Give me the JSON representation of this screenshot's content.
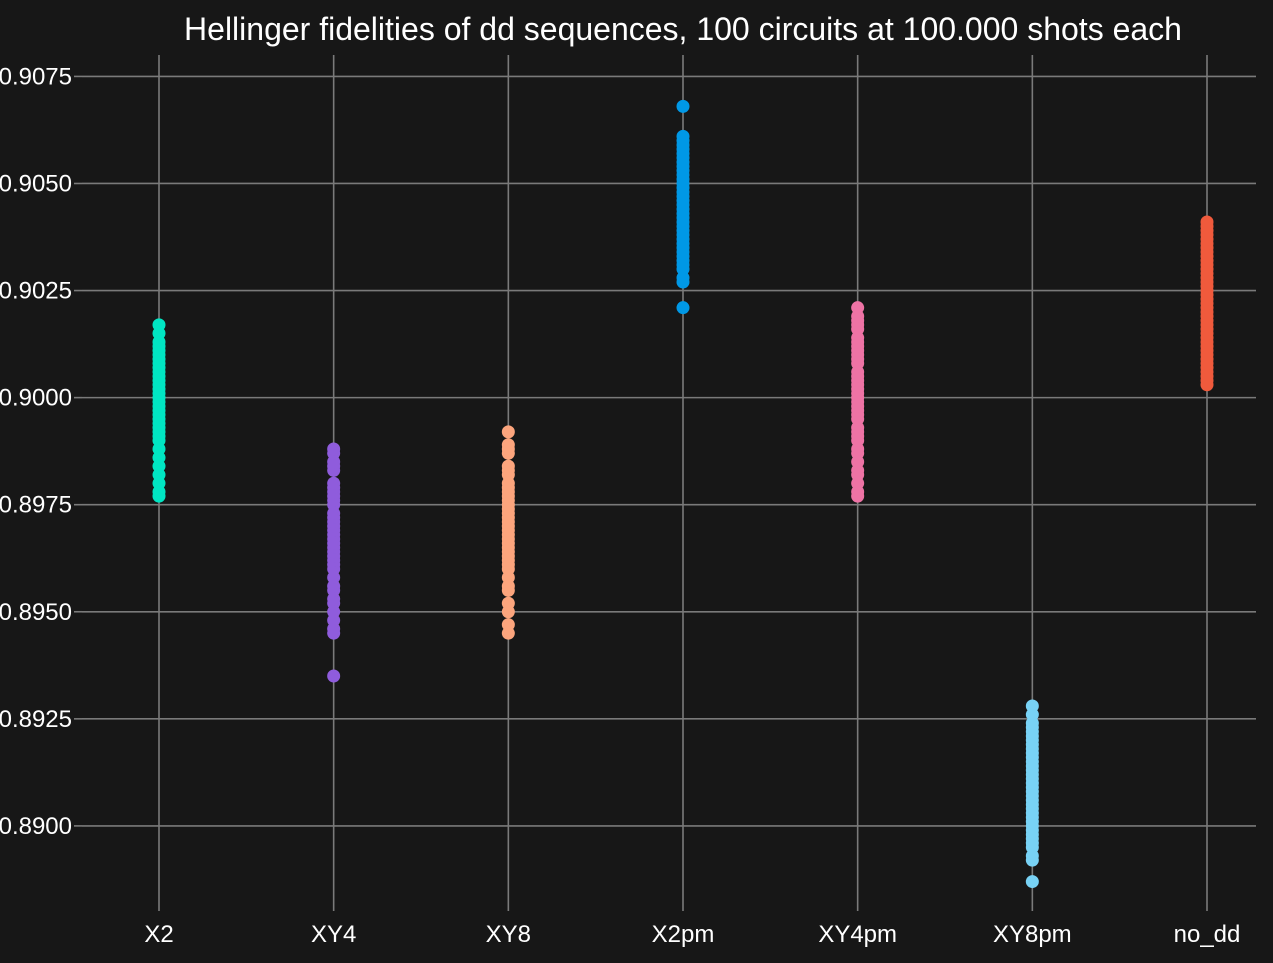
{
  "chart_data": {
    "type": "scatter",
    "title": "Hellinger fidelities of dd sequences, 100 circuits at 100.000 shots each",
    "xlabel": "",
    "ylabel": "",
    "categories": [
      "X2",
      "XY4",
      "XY8",
      "X2pm",
      "XY4pm",
      "XY8pm",
      "no_dd"
    ],
    "ylim": [
      0.8882,
      0.908
    ],
    "yticks": [
      0.89,
      0.8925,
      0.895,
      0.8975,
      0.9,
      0.9025,
      0.905,
      0.9075
    ],
    "ytick_labels": [
      "0.8900",
      "0.8925",
      "0.8950",
      "0.8975",
      "0.9000",
      "0.9025",
      "0.9050",
      "0.9075"
    ],
    "grid": true,
    "legend": "none",
    "series": [
      {
        "category": "X2",
        "color": "#00e6c3",
        "values": [
          0.8977,
          0.8978,
          0.898,
          0.8982,
          0.8984,
          0.8986,
          0.8988,
          0.899,
          0.8991,
          0.8992,
          0.8993,
          0.8994,
          0.8995,
          0.8996,
          0.8997,
          0.8998,
          0.8999,
          0.9,
          0.9001,
          0.9002,
          0.9003,
          0.9004,
          0.9005,
          0.9006,
          0.9007,
          0.9008,
          0.9009,
          0.901,
          0.9011,
          0.9012,
          0.9013,
          0.9015,
          0.9017
        ]
      },
      {
        "category": "XY4",
        "color": "#8f5cdc",
        "values": [
          0.8935,
          0.8945,
          0.8946,
          0.8948,
          0.895,
          0.8952,
          0.8953,
          0.8955,
          0.8956,
          0.8958,
          0.896,
          0.8961,
          0.8962,
          0.8963,
          0.8964,
          0.8965,
          0.8966,
          0.8967,
          0.8968,
          0.8969,
          0.897,
          0.8971,
          0.8972,
          0.8973,
          0.8975,
          0.8976,
          0.8977,
          0.8978,
          0.8979,
          0.898,
          0.8983,
          0.8984,
          0.8985,
          0.8987,
          0.8988
        ]
      },
      {
        "category": "XY8",
        "color": "#fca57d",
        "values": [
          0.8945,
          0.8947,
          0.895,
          0.8952,
          0.8955,
          0.8956,
          0.8958,
          0.896,
          0.8961,
          0.8962,
          0.8963,
          0.8964,
          0.8965,
          0.8966,
          0.8967,
          0.8968,
          0.8969,
          0.897,
          0.8971,
          0.8972,
          0.8973,
          0.8974,
          0.8975,
          0.8976,
          0.8977,
          0.8978,
          0.8979,
          0.898,
          0.8982,
          0.8983,
          0.8984,
          0.8987,
          0.8988,
          0.8989,
          0.8992
        ]
      },
      {
        "category": "X2pm",
        "color": "#0098e6",
        "values": [
          0.9021,
          0.9027,
          0.9028,
          0.903,
          0.9031,
          0.9032,
          0.9033,
          0.9034,
          0.9035,
          0.9036,
          0.9037,
          0.9038,
          0.9039,
          0.904,
          0.9041,
          0.9042,
          0.9043,
          0.9044,
          0.9045,
          0.9046,
          0.9047,
          0.9048,
          0.9049,
          0.905,
          0.9051,
          0.9052,
          0.9053,
          0.9054,
          0.9055,
          0.9056,
          0.9057,
          0.9058,
          0.9059,
          0.906,
          0.9061,
          0.9068
        ]
      },
      {
        "category": "XY4pm",
        "color": "#ee73a5",
        "values": [
          0.8977,
          0.8978,
          0.898,
          0.8982,
          0.8983,
          0.8985,
          0.8987,
          0.8988,
          0.899,
          0.8991,
          0.8992,
          0.8993,
          0.8995,
          0.8996,
          0.8997,
          0.8998,
          0.8999,
          0.9,
          0.9001,
          0.9002,
          0.9003,
          0.9004,
          0.9005,
          0.9006,
          0.9008,
          0.9009,
          0.901,
          0.9011,
          0.9012,
          0.9013,
          0.9014,
          0.9016,
          0.9017,
          0.9018,
          0.9019,
          0.9021
        ]
      },
      {
        "category": "XY8pm",
        "color": "#78d2f5",
        "values": [
          0.8887,
          0.8892,
          0.8893,
          0.8895,
          0.8896,
          0.8897,
          0.8898,
          0.8899,
          0.89,
          0.8901,
          0.8902,
          0.8903,
          0.8904,
          0.8905,
          0.8906,
          0.8907,
          0.8908,
          0.8909,
          0.891,
          0.8911,
          0.8912,
          0.8913,
          0.8914,
          0.8915,
          0.8916,
          0.8917,
          0.8918,
          0.8919,
          0.892,
          0.8921,
          0.8922,
          0.8923,
          0.8924,
          0.8926,
          0.8928
        ]
      },
      {
        "category": "no_dd",
        "color": "#f05a3c",
        "values": [
          0.9003,
          0.9004,
          0.9005,
          0.9006,
          0.9007,
          0.9008,
          0.9009,
          0.901,
          0.9011,
          0.9012,
          0.9013,
          0.9014,
          0.9015,
          0.9016,
          0.9017,
          0.9018,
          0.9019,
          0.902,
          0.9021,
          0.9022,
          0.9023,
          0.9024,
          0.9025,
          0.9026,
          0.9027,
          0.9028,
          0.9029,
          0.903,
          0.9031,
          0.9032,
          0.9033,
          0.9034,
          0.9035,
          0.9036,
          0.9037,
          0.9038,
          0.9039,
          0.904,
          0.9041
        ]
      }
    ]
  }
}
